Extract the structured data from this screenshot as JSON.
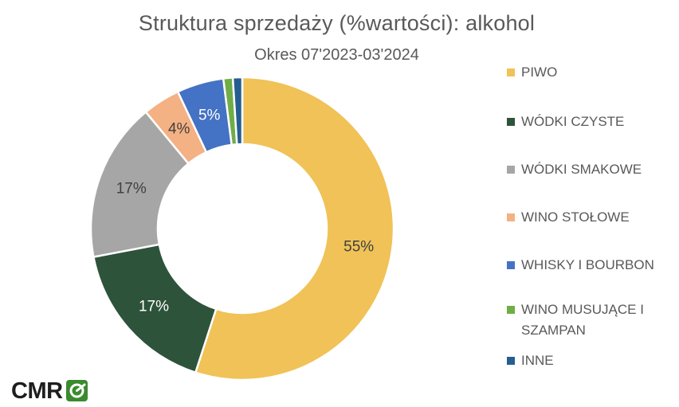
{
  "chart_data": {
    "type": "pie",
    "variant": "donut",
    "title": "Struktura sprzedaży (%wartości): alkohol",
    "subtitle": "Okres 07'2023-03'2024",
    "legend_position": "right",
    "slices": [
      {
        "label": "PIWO",
        "value": 55,
        "value_label": "55%",
        "color": "#F0C257"
      },
      {
        "label": "WÓDKI CZYSTE",
        "value": 17,
        "value_label": "17%",
        "color": "#2E533B"
      },
      {
        "label": "WÓDKI SMAKOWE",
        "value": 17,
        "value_label": "17%",
        "color": "#A6A6A6"
      },
      {
        "label": "WINO STOŁOWE",
        "value": 4,
        "value_label": "4%",
        "color": "#F4B183"
      },
      {
        "label": "WHISKY I BOURBON",
        "value": 5,
        "value_label": "5%",
        "color": "#4472C4"
      },
      {
        "label": "WINO MUSUJĄCE I SZAMPAN",
        "value": 1,
        "value_label": "",
        "color": "#70AD47"
      },
      {
        "label": "INNE",
        "value": 1,
        "value_label": "",
        "color": "#255E91"
      }
    ]
  },
  "logo": {
    "text": "CMR",
    "colors": {
      "text": "#1E1E1E",
      "mark": "#3A8A2E"
    }
  }
}
